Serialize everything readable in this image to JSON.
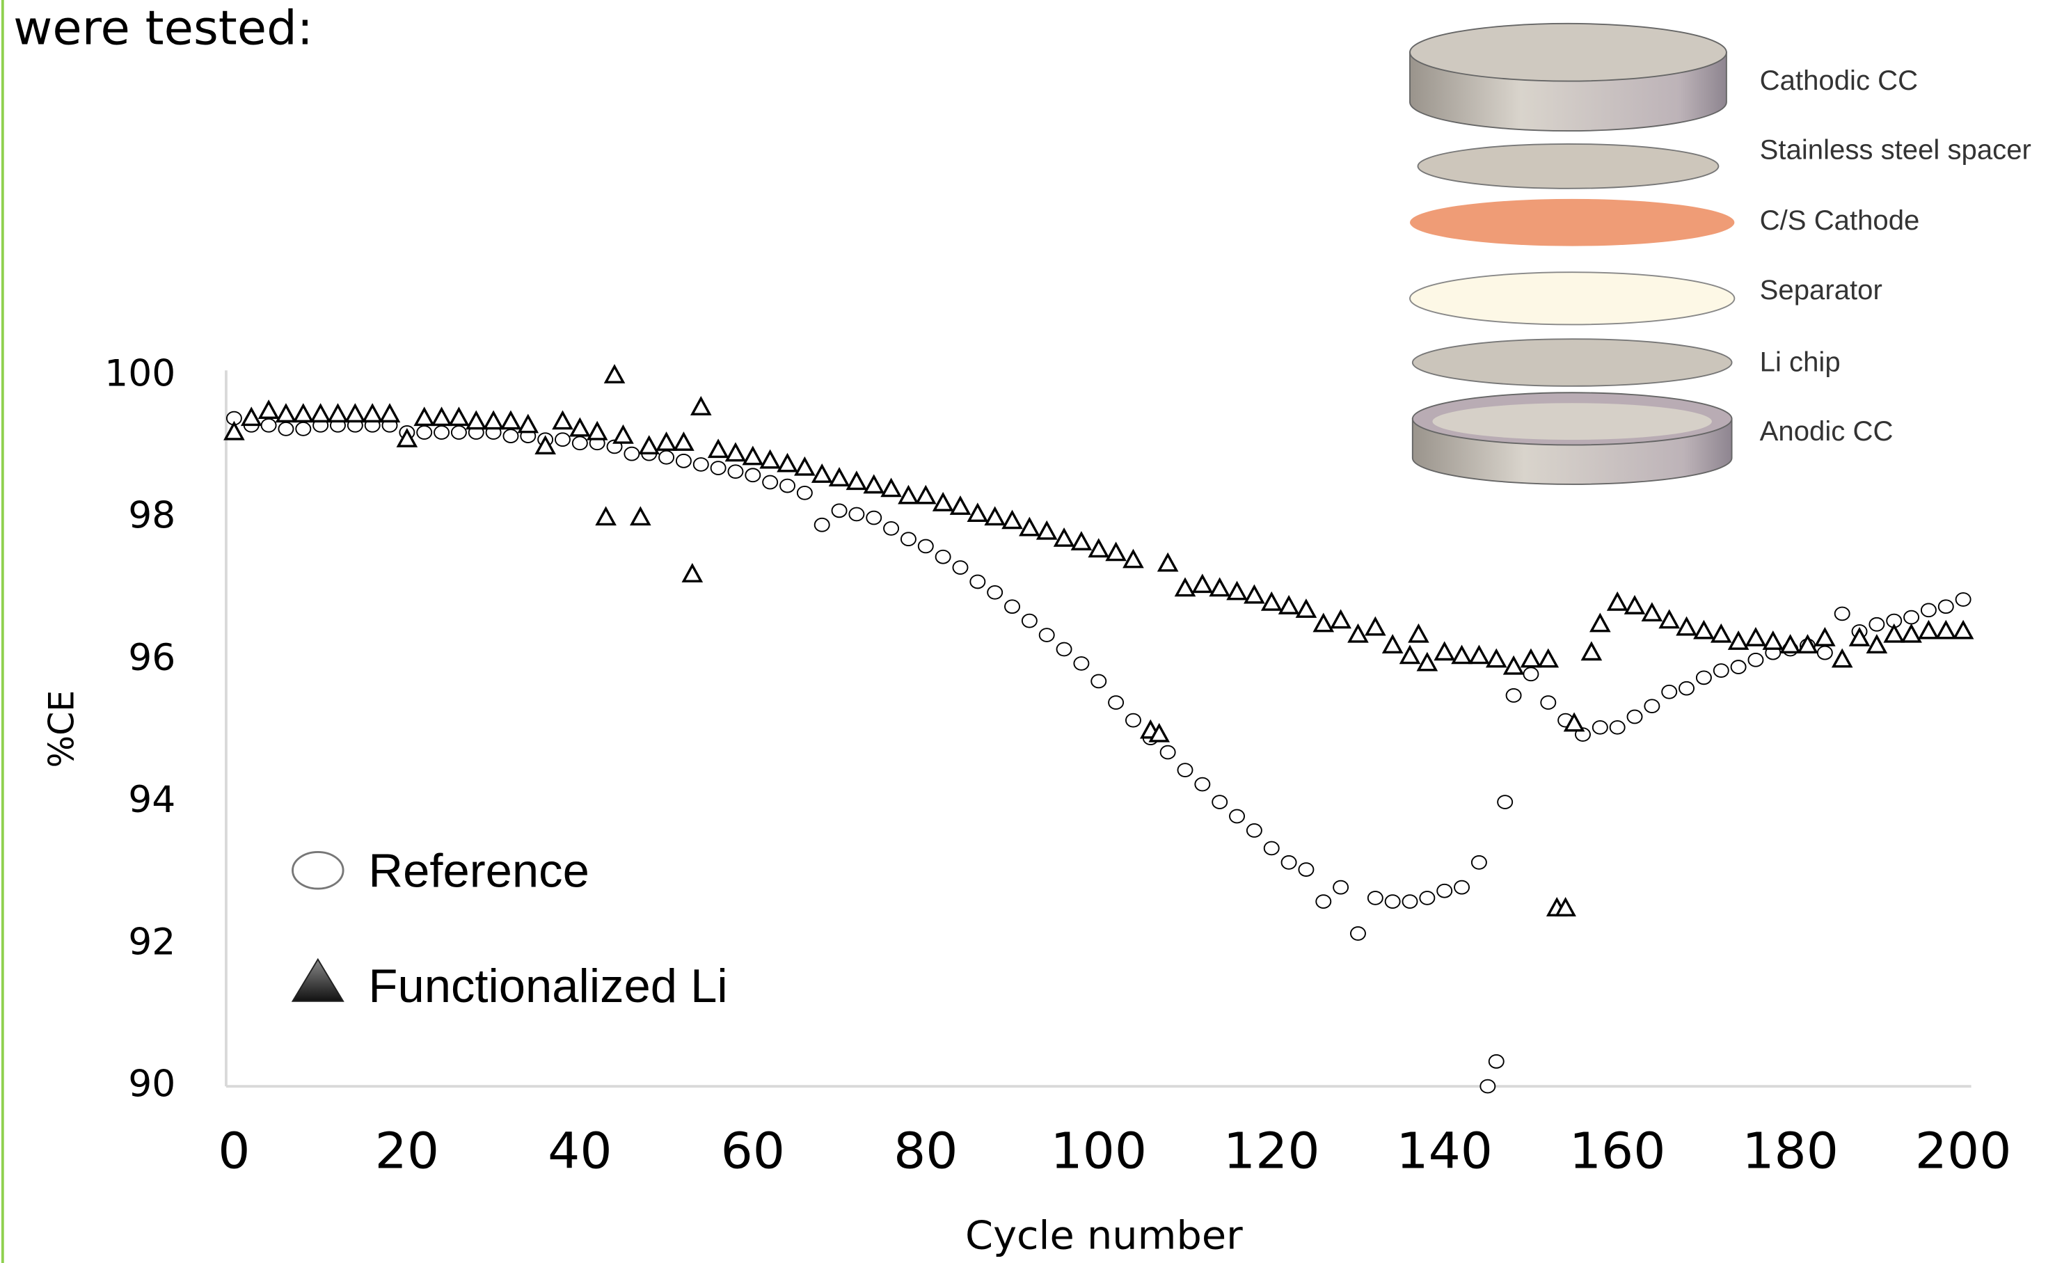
{
  "heading": "were tested:",
  "diagram": {
    "labels": [
      "Cathodic CC",
      "Stainless steel spacer",
      "C/S Cathode",
      "Separator",
      "Li chip",
      "Anodic CC"
    ]
  },
  "chart_data": {
    "type": "scatter",
    "xlabel": "Cycle number",
    "ylabel": "%CE",
    "xlim": [
      0,
      200
    ],
    "xticks": [
      0,
      20,
      40,
      60,
      80,
      100,
      120,
      140,
      160,
      180,
      200
    ],
    "ylim": [
      90,
      100
    ],
    "yticks": [
      90,
      92,
      94,
      96,
      98,
      100
    ],
    "series": [
      {
        "name": "Reference",
        "color": "#000000",
        "marker": "circle",
        "x": [
          0,
          2,
          4,
          6,
          8,
          10,
          12,
          14,
          16,
          18,
          20,
          22,
          24,
          26,
          28,
          30,
          32,
          34,
          36,
          38,
          40,
          42,
          44,
          46,
          48,
          50,
          52,
          54,
          56,
          58,
          60,
          62,
          64,
          66,
          68,
          70,
          72,
          74,
          76,
          78,
          80,
          82,
          84,
          86,
          88,
          90,
          92,
          94,
          96,
          98,
          100,
          102,
          104,
          106,
          108,
          110,
          112,
          114,
          116,
          118,
          120,
          122,
          124,
          126,
          128,
          130,
          132,
          134,
          136,
          138,
          140,
          142,
          144,
          145,
          146,
          147,
          148,
          150,
          152,
          154,
          156,
          158,
          160,
          162,
          164,
          166,
          168,
          170,
          172,
          174,
          176,
          178,
          180,
          182,
          184,
          186,
          188,
          190,
          192,
          194,
          196,
          198,
          200
        ],
        "values": [
          99.4,
          99.3,
          99.3,
          99.25,
          99.25,
          99.3,
          99.3,
          99.3,
          99.3,
          99.3,
          99.2,
          99.2,
          99.2,
          99.2,
          99.2,
          99.2,
          99.15,
          99.15,
          99.1,
          99.1,
          99.05,
          99.05,
          99.0,
          98.9,
          98.9,
          98.85,
          98.8,
          98.75,
          98.7,
          98.65,
          98.6,
          98.5,
          98.45,
          98.35,
          97.9,
          98.1,
          98.05,
          98.0,
          97.85,
          97.7,
          97.6,
          97.45,
          97.3,
          97.1,
          96.95,
          96.75,
          96.55,
          96.35,
          96.15,
          95.95,
          95.7,
          95.4,
          95.15,
          94.9,
          94.7,
          94.45,
          94.25,
          94.0,
          93.8,
          93.6,
          93.35,
          93.15,
          93.05,
          92.6,
          92.8,
          92.15,
          92.65,
          92.6,
          92.6,
          92.65,
          92.75,
          92.8,
          93.15,
          90.0,
          90.35,
          94.0,
          95.5,
          95.8,
          95.4,
          95.15,
          94.95,
          95.05,
          95.05,
          95.2,
          95.35,
          95.55,
          95.6,
          95.75,
          95.85,
          95.9,
          96.0,
          96.1,
          96.15,
          96.2,
          96.1,
          96.65,
          96.4,
          96.5,
          96.55,
          96.6,
          96.7,
          96.75,
          96.85
        ]
      },
      {
        "name": "Functionalized Li",
        "color": "#000000",
        "marker": "triangle",
        "x": [
          0,
          2,
          4,
          6,
          8,
          10,
          12,
          14,
          16,
          18,
          20,
          22,
          24,
          26,
          28,
          30,
          32,
          34,
          36,
          38,
          40,
          42,
          43,
          44,
          45,
          47,
          48,
          50,
          52,
          53,
          54,
          56,
          58,
          60,
          62,
          64,
          66,
          68,
          70,
          72,
          74,
          76,
          78,
          80,
          82,
          84,
          86,
          88,
          90,
          92,
          94,
          96,
          98,
          100,
          102,
          104,
          106,
          107,
          108,
          110,
          112,
          114,
          116,
          118,
          120,
          122,
          124,
          126,
          128,
          130,
          132,
          134,
          136,
          137,
          138,
          140,
          142,
          144,
          146,
          148,
          150,
          152,
          153,
          154,
          155,
          157,
          158,
          160,
          162,
          164,
          166,
          168,
          170,
          172,
          174,
          176,
          178,
          180,
          182,
          184,
          186,
          188,
          190,
          192,
          194,
          196,
          198,
          200
        ],
        "values": [
          99.2,
          99.4,
          99.5,
          99.45,
          99.45,
          99.45,
          99.45,
          99.45,
          99.45,
          99.45,
          99.1,
          99.4,
          99.4,
          99.4,
          99.35,
          99.35,
          99.35,
          99.3,
          99.0,
          99.35,
          99.25,
          99.2,
          98.0,
          100.0,
          99.15,
          98.0,
          99.0,
          99.05,
          99.05,
          97.2,
          99.55,
          98.95,
          98.9,
          98.85,
          98.8,
          98.75,
          98.7,
          98.6,
          98.55,
          98.5,
          98.45,
          98.4,
          98.3,
          98.3,
          98.2,
          98.15,
          98.05,
          98.0,
          97.95,
          97.85,
          97.8,
          97.7,
          97.65,
          97.55,
          97.5,
          97.4,
          95.0,
          94.95,
          97.35,
          97.0,
          97.05,
          97.0,
          96.95,
          96.9,
          96.8,
          96.75,
          96.7,
          96.5,
          96.55,
          96.35,
          96.45,
          96.2,
          96.05,
          96.35,
          95.95,
          96.1,
          96.05,
          96.05,
          96.0,
          95.9,
          96.0,
          96.0,
          92.5,
          92.5,
          95.1,
          96.1,
          96.5,
          96.8,
          96.75,
          96.65,
          96.55,
          96.45,
          96.4,
          96.35,
          96.25,
          96.3,
          96.25,
          96.2,
          96.2,
          96.3,
          96.0,
          96.3,
          96.2,
          96.35,
          96.35,
          96.4,
          96.4,
          96.4
        ]
      }
    ]
  }
}
